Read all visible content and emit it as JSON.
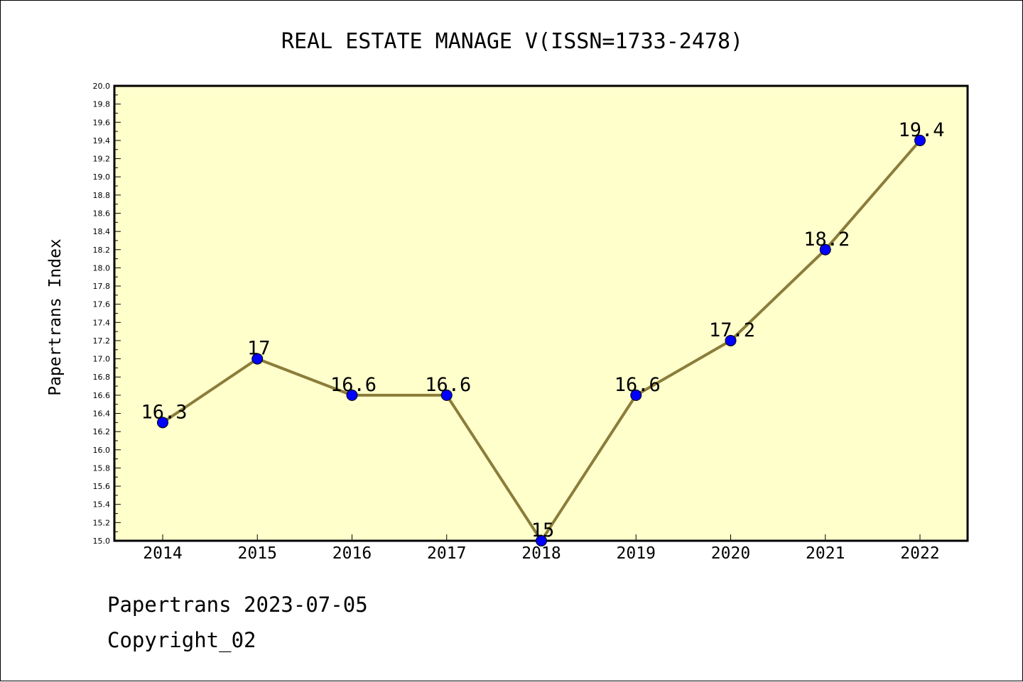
{
  "chart_data": {
    "type": "line",
    "title": "REAL ESTATE MANAGE V(ISSN=1733-2478)",
    "xlabel": "",
    "ylabel": "Papertrans Index",
    "categories": [
      "2014",
      "2015",
      "2016",
      "2017",
      "2018",
      "2019",
      "2020",
      "2021",
      "2022"
    ],
    "values": [
      16.3,
      17,
      16.6,
      16.6,
      15,
      16.6,
      17.2,
      18.2,
      19.4
    ],
    "data_labels": [
      "16.3",
      "17",
      "16.6",
      "16.6",
      "15",
      "16.6",
      "17.2",
      "18.2",
      "19.4"
    ],
    "ylim": [
      15.0,
      20.0
    ],
    "y_ticks": [
      "15.0",
      "15.2",
      "15.4",
      "15.6",
      "15.8",
      "16.0",
      "16.2",
      "16.4",
      "16.6",
      "16.8",
      "17.0",
      "17.2",
      "17.4",
      "17.6",
      "17.8",
      "18.0",
      "18.2",
      "18.4",
      "18.6",
      "18.8",
      "19.0",
      "19.2",
      "19.4",
      "19.6",
      "19.8",
      "20.0"
    ],
    "grid": false,
    "legend": "none",
    "colors": {
      "plot_background": "#ffffcc",
      "line": "#8b7d3a",
      "marker": "#0000ff"
    }
  },
  "footer": {
    "date_line": "Papertrans 2023-07-05",
    "copyright_line": "Copyright_02"
  }
}
